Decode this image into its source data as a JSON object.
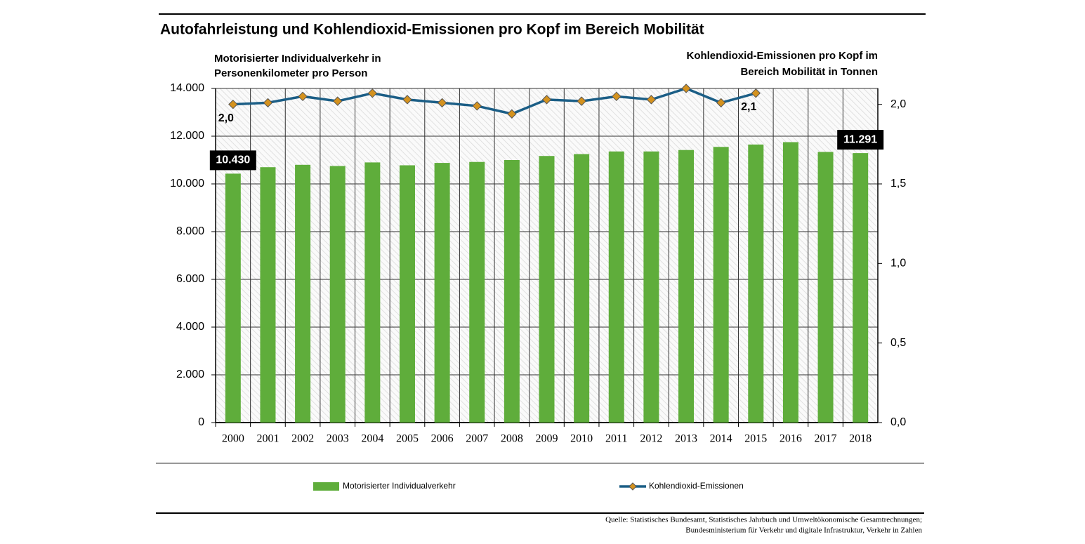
{
  "chart_data": {
    "type": "bar-line",
    "title": "Autofahrleistung und Kohlendioxid-Emissionen pro Kopf im Bereich Mobilität",
    "y_axis_title": [
      "Motorisierter Individualverkehr in",
      "Personenkilometer pro Person"
    ],
    "y2_axis_title": [
      "Kohlendioxid-Emissionen pro Kopf im",
      "Bereich Mobilität in Tonnen"
    ],
    "categories": [
      "2000",
      "2001",
      "2002",
      "2003",
      "2004",
      "2005",
      "2006",
      "2007",
      "2008",
      "2009",
      "2010",
      "2011",
      "2012",
      "2013",
      "2014",
      "2015",
      "2016",
      "2017",
      "2018"
    ],
    "series": [
      {
        "name": "Motorisierter Individualverkehr",
        "type": "bar",
        "color": "#5fad3b",
        "values": [
          10430,
          10700,
          10800,
          10750,
          10900,
          10780,
          10880,
          10920,
          11000,
          11170,
          11250,
          11360,
          11360,
          11420,
          11550,
          11650,
          11750,
          11340,
          11291
        ],
        "value_labels": [
          "10.430",
          null,
          null,
          null,
          null,
          null,
          null,
          null,
          null,
          null,
          null,
          null,
          null,
          null,
          null,
          null,
          null,
          null,
          "11.291"
        ]
      },
      {
        "name": "Kohlendioxid-Emissionen",
        "type": "line",
        "axis": "y2",
        "color": "#1b5e86",
        "marker_color": "#d4921e",
        "values": [
          2.0,
          2.01,
          2.05,
          2.02,
          2.07,
          2.03,
          2.01,
          1.99,
          1.94,
          2.03,
          2.02,
          2.05,
          2.03,
          2.1,
          2.01,
          2.07,
          null,
          null,
          null
        ],
        "value_labels": [
          "2,0",
          null,
          null,
          null,
          null,
          null,
          null,
          null,
          null,
          null,
          null,
          null,
          null,
          null,
          null,
          "2,1",
          null,
          null,
          null
        ]
      }
    ],
    "ylim": [
      0,
      14000
    ],
    "yticks": [
      0,
      {
        "value": 2000,
        "label": "2.000"
      },
      {
        "value": 4000,
        "label": "4.000"
      },
      {
        "value": 6000,
        "label": "6.000"
      },
      {
        "value": 8000,
        "label": "8.000"
      },
      {
        "value": 10000,
        "label": "10.000"
      },
      {
        "value": 12000,
        "label": "12.000"
      },
      {
        "value": 14000,
        "label": "14.000"
      }
    ],
    "y2lim": [
      0,
      2.1
    ],
    "y2ticks": [
      {
        "value": 0,
        "label": "0,0"
      },
      {
        "value": 0.5,
        "label": "0,5"
      },
      {
        "value": 1,
        "label": "1,0"
      },
      {
        "value": 1.5,
        "label": "1,5"
      },
      {
        "value": 2,
        "label": "2,0"
      }
    ],
    "grid": true,
    "legend": "bottom",
    "source": [
      "Quelle: Statistisches Bundesamt, Statistisches Jahrbuch und Umweltökonomische Gesamtrechnungen;",
      "Bundesministerium für Verkehr und digitale Infrastruktur, Verkehr in Zahlen"
    ]
  }
}
